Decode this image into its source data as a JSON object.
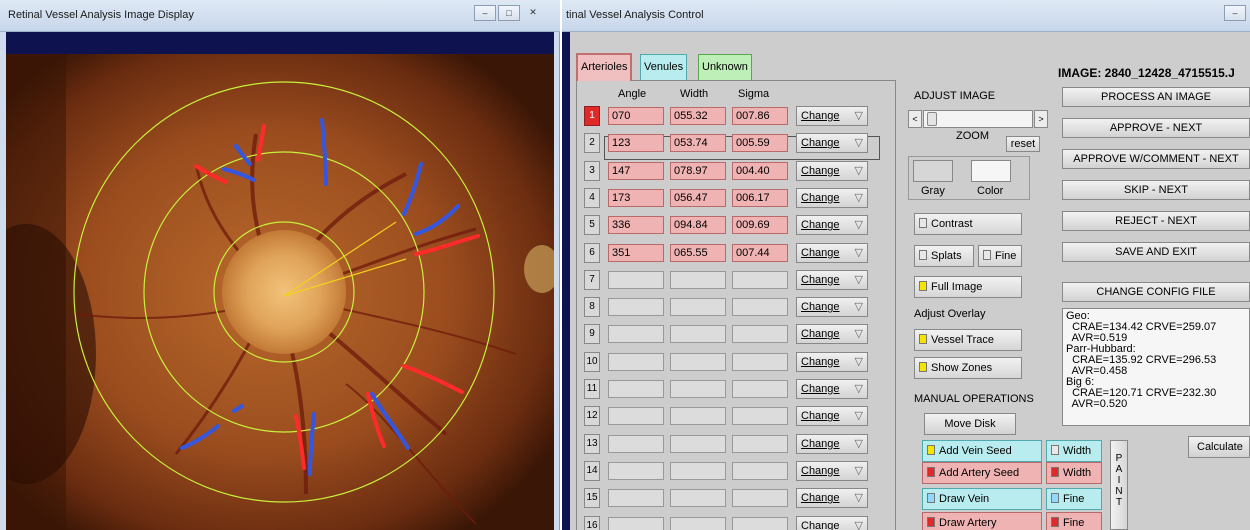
{
  "display_window": {
    "title": "Retinal Vessel Analysis Image Display",
    "controls": [
      "–",
      "□",
      "✕"
    ]
  },
  "control_window": {
    "title": "tinal Vessel Analysis Control",
    "controls": [
      "–"
    ]
  },
  "tabs": [
    {
      "label": "Arterioles",
      "color": "#f0c0c0",
      "active": true
    },
    {
      "label": "Venules",
      "color": "#b9ecee",
      "active": false
    },
    {
      "label": "Unknown",
      "color": "#bfefb8",
      "active": false
    }
  ],
  "table": {
    "headers": [
      "Angle",
      "Width",
      "Sigma"
    ],
    "change_label": "Change",
    "change_arrow": "▽",
    "rows": [
      {
        "n": "1",
        "angle": "070",
        "width": "055.32",
        "sigma": "007.86"
      },
      {
        "n": "2",
        "angle": "123",
        "width": "053.74",
        "sigma": "005.59"
      },
      {
        "n": "3",
        "angle": "147",
        "width": "078.97",
        "sigma": "004.40"
      },
      {
        "n": "4",
        "angle": "173",
        "width": "056.47",
        "sigma": "006.17"
      },
      {
        "n": "5",
        "angle": "336",
        "width": "094.84",
        "sigma": "009.69"
      },
      {
        "n": "6",
        "angle": "351",
        "width": "065.55",
        "sigma": "007.44"
      },
      {
        "n": "7",
        "angle": "",
        "width": "",
        "sigma": ""
      },
      {
        "n": "8",
        "angle": "",
        "width": "",
        "sigma": ""
      },
      {
        "n": "9",
        "angle": "",
        "width": "",
        "sigma": ""
      },
      {
        "n": "10",
        "angle": "",
        "width": "",
        "sigma": ""
      },
      {
        "n": "11",
        "angle": "",
        "width": "",
        "sigma": ""
      },
      {
        "n": "12",
        "angle": "",
        "width": "",
        "sigma": ""
      },
      {
        "n": "13",
        "angle": "",
        "width": "",
        "sigma": ""
      },
      {
        "n": "14",
        "angle": "",
        "width": "",
        "sigma": ""
      },
      {
        "n": "15",
        "angle": "",
        "width": "",
        "sigma": ""
      },
      {
        "n": "16",
        "angle": "",
        "width": "",
        "sigma": ""
      }
    ],
    "selected_row": "1"
  },
  "adjust_image": {
    "heading": "ADJUST IMAGE",
    "zoom_label": "ZOOM",
    "reset_label": "reset",
    "slider_left": "<",
    "slider_right": ">",
    "gray_label": "Gray",
    "color_label": "Color",
    "contrast_label": "Contrast",
    "splats_label": "Splats",
    "fine_label": "Fine",
    "full_image_label": "Full Image"
  },
  "overlay": {
    "heading": "Adjust Overlay",
    "vessel_trace_label": "Vessel Trace",
    "show_zones_label": "Show Zones"
  },
  "manual": {
    "heading": "MANUAL OPERATIONS",
    "move_disk_label": "Move Disk",
    "add_vein_seed_label": "Add Vein Seed",
    "add_artery_seed_label": "Add Artery Seed",
    "draw_vein_label": "Draw Vein",
    "draw_artery_label": "Draw Artery",
    "width_label": "Width",
    "fine_label": "Fine",
    "paint_label": "PAINT"
  },
  "image_label": "IMAGE: 2840_12428_4715515.J",
  "actions": [
    "PROCESS AN IMAGE",
    "APPROVE - NEXT",
    "APPROVE W/COMMENT - NEXT",
    "SKIP - NEXT",
    "REJECT - NEXT",
    "SAVE AND EXIT",
    "CHANGE CONFIG FILE"
  ],
  "results_text": "Geo:\n  CRAE=134.42 CRVE=259.07\n  AVR=0.519\nParr-Hubbard:\n  CRAE=135.92 CRVE=296.53\n  AVR=0.458\nBig 6:\n  CRAE=120.71 CRVE=232.30\n  AVR=0.520",
  "calculate_label": "Calculate",
  "colors": {
    "artery": "#ff2a2a",
    "vein": "#3557e0",
    "zone_ring": "#c8f03c",
    "radius_line": "#f2d21a",
    "titlebar_navy": "#0e1350"
  }
}
